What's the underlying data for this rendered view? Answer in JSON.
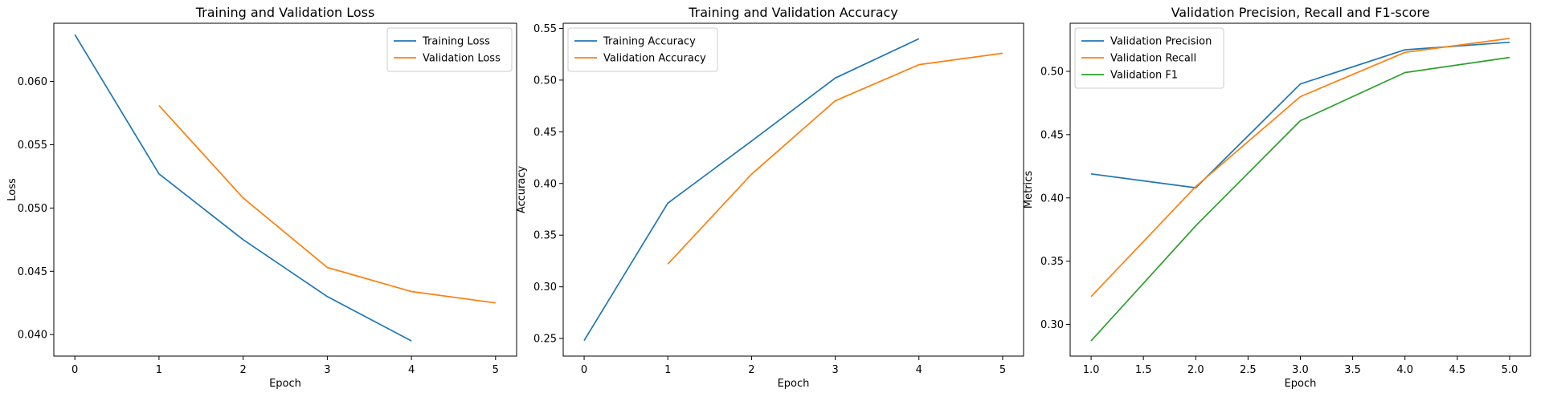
{
  "colors": {
    "blue": "#1f77b4",
    "orange": "#ff7f0e",
    "green": "#2ca02c"
  },
  "chart_data": [
    {
      "type": "line",
      "title": "Training and Validation Loss",
      "xlabel": "Epoch",
      "ylabel": "Loss",
      "xlim": [
        -0.25,
        5.25
      ],
      "ylim": [
        0.0383,
        0.0646
      ],
      "xticks": [
        0,
        1,
        2,
        3,
        4,
        5
      ],
      "xtick_labels": [
        "0",
        "1",
        "2",
        "3",
        "4",
        "5"
      ],
      "yticks": [
        0.04,
        0.045,
        0.05,
        0.055,
        0.06
      ],
      "ytick_labels": [
        "0.040",
        "0.045",
        "0.050",
        "0.055",
        "0.060"
      ],
      "grid": false,
      "legend": "top-right",
      "series": [
        {
          "name": "Training Loss",
          "color": "#1f77b4",
          "x": [
            0,
            1,
            2,
            3,
            4
          ],
          "y": [
            0.0637,
            0.0527,
            0.0475,
            0.043,
            0.0395
          ]
        },
        {
          "name": "Validation Loss",
          "color": "#ff7f0e",
          "x": [
            1,
            2,
            3,
            4,
            5
          ],
          "y": [
            0.0581,
            0.0508,
            0.0453,
            0.0434,
            0.0425
          ]
        }
      ]
    },
    {
      "type": "line",
      "title": "Training and Validation Accuracy",
      "xlabel": "Epoch",
      "ylabel": "Accuracy",
      "xlim": [
        -0.25,
        5.25
      ],
      "ylim": [
        0.233,
        0.555
      ],
      "xticks": [
        0,
        1,
        2,
        3,
        4,
        5
      ],
      "xtick_labels": [
        "0",
        "1",
        "2",
        "3",
        "4",
        "5"
      ],
      "yticks": [
        0.25,
        0.3,
        0.35,
        0.4,
        0.45,
        0.5,
        0.55
      ],
      "ytick_labels": [
        "0.25",
        "0.30",
        "0.35",
        "0.40",
        "0.45",
        "0.50",
        "0.55"
      ],
      "grid": false,
      "legend": "top-left",
      "series": [
        {
          "name": "Training Accuracy",
          "color": "#1f77b4",
          "x": [
            0,
            1,
            2,
            3,
            4
          ],
          "y": [
            0.248,
            0.381,
            0.441,
            0.502,
            0.54
          ]
        },
        {
          "name": "Validation Accuracy",
          "color": "#ff7f0e",
          "x": [
            1,
            2,
            3,
            4,
            5
          ],
          "y": [
            0.322,
            0.409,
            0.48,
            0.515,
            0.526
          ]
        }
      ]
    },
    {
      "type": "line",
      "title": "Validation Precision, Recall and F1-score",
      "xlabel": "Epoch",
      "ylabel": "Metrics",
      "xlim": [
        0.8,
        5.2
      ],
      "ylim": [
        0.275,
        0.538
      ],
      "xticks": [
        1.0,
        1.5,
        2.0,
        2.5,
        3.0,
        3.5,
        4.0,
        4.5,
        5.0
      ],
      "xtick_labels": [
        "1.0",
        "1.5",
        "2.0",
        "2.5",
        "3.0",
        "3.5",
        "4.0",
        "4.5",
        "5.0"
      ],
      "yticks": [
        0.3,
        0.35,
        0.4,
        0.45,
        0.5
      ],
      "ytick_labels": [
        "0.30",
        "0.35",
        "0.40",
        "0.45",
        "0.50"
      ],
      "grid": false,
      "legend": "top-left",
      "series": [
        {
          "name": "Validation Precision",
          "color": "#1f77b4",
          "x": [
            1,
            2,
            3,
            4,
            5
          ],
          "y": [
            0.419,
            0.408,
            0.49,
            0.517,
            0.523
          ]
        },
        {
          "name": "Validation Recall",
          "color": "#ff7f0e",
          "x": [
            1,
            2,
            3,
            4,
            5
          ],
          "y": [
            0.322,
            0.409,
            0.48,
            0.515,
            0.526
          ]
        },
        {
          "name": "Validation F1",
          "color": "#2ca02c",
          "x": [
            1,
            2,
            3,
            4,
            5
          ],
          "y": [
            0.287,
            0.378,
            0.461,
            0.499,
            0.511
          ]
        }
      ]
    }
  ]
}
